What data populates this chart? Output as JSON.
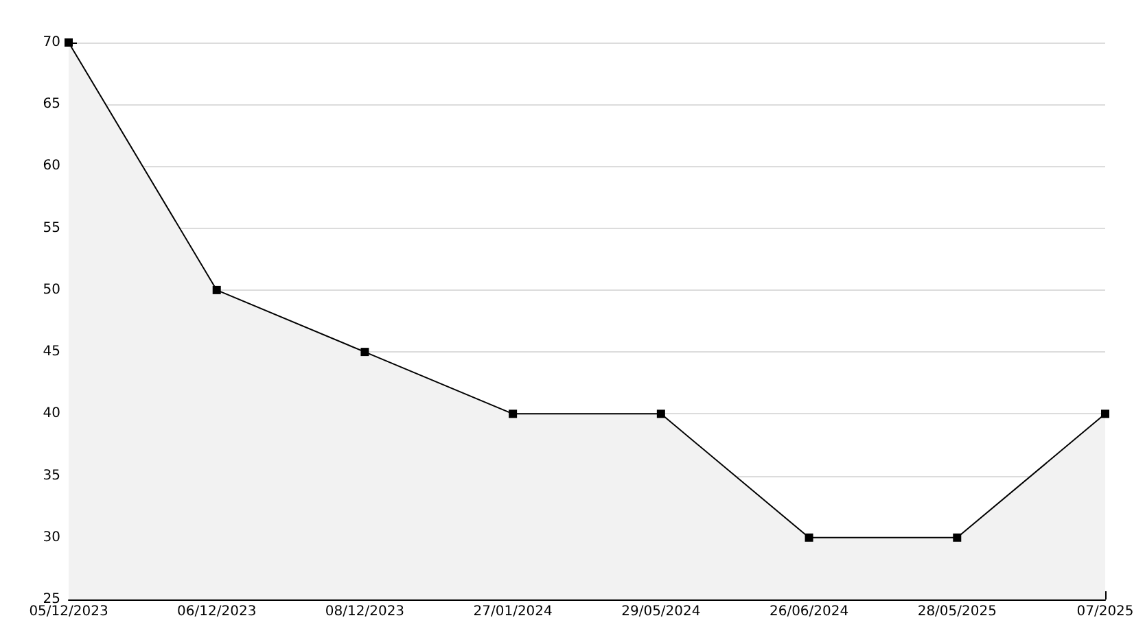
{
  "chart_data": {
    "type": "area",
    "categories": [
      "05/12/2023",
      "06/12/2023",
      "08/12/2023",
      "27/01/2024",
      "29/05/2024",
      "26/06/2024",
      "28/05/2025",
      "07/2025"
    ],
    "series": [
      {
        "color": "#000000",
        "values": [
          70,
          50,
          45,
          40,
          40,
          30,
          30,
          40
        ]
      }
    ],
    "ylim": [
      25,
      70
    ],
    "yticks": [
      25,
      30,
      35,
      40,
      45,
      50,
      55,
      60,
      65,
      70
    ],
    "grid": "y",
    "marker": "square",
    "line_style": "solid"
  }
}
